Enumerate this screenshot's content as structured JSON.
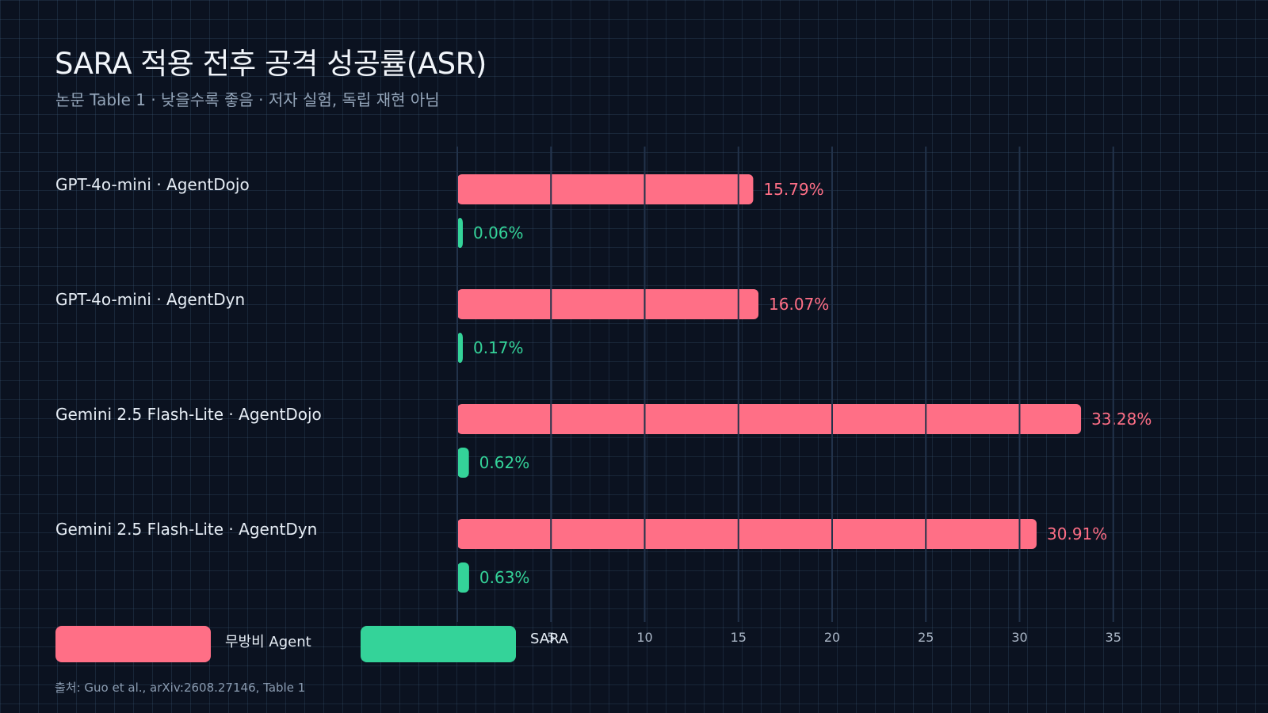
{
  "title": "SARA 적용 전후 공격 성공률(ASR)",
  "subtitle": "논문 Table 1 · 낮을수록 좋음 · 저자 실험, 독립 재현 아님",
  "source": "출처: Guo et al., arXiv:2608.27146, Table 1",
  "colors": {
    "background": "#0b1220",
    "baseline": "#ff6f86",
    "sara": "#34d399",
    "axis_line": "#22324a",
    "tick_text": "#aab6c6"
  },
  "legend": [
    {
      "label": "무방비 Agent",
      "color": "#ff6f86"
    },
    {
      "label": "SARA",
      "color": "#34d399"
    }
  ],
  "chart_data": {
    "type": "bar",
    "orientation": "horizontal",
    "title": "SARA 적용 전후 공격 성공률(ASR)",
    "categories": [
      "GPT-4o-mini · AgentDojo",
      "GPT-4o-mini · AgentDyn",
      "Gemini 2.5 Flash-Lite · AgentDojo",
      "Gemini 2.5 Flash-Lite · AgentDyn"
    ],
    "series": [
      {
        "name": "무방비 Agent",
        "values": [
          15.79,
          16.07,
          33.28,
          30.91
        ],
        "labels": [
          "15.79%",
          "16.07%",
          "33.28%",
          "30.91%"
        ]
      },
      {
        "name": "SARA",
        "values": [
          0.06,
          0.17,
          0.62,
          0.63
        ],
        "labels": [
          "0.06%",
          "0.17%",
          "0.62%",
          "0.63%"
        ]
      }
    ],
    "xlim": [
      0,
      35
    ],
    "xticks": [
      5,
      10,
      15,
      20,
      25,
      30,
      35
    ],
    "xtick_labels": [
      "5",
      "10",
      "15",
      "20",
      "25",
      "30",
      "35"
    ],
    "grid": true,
    "legend_position": "bottom-left"
  }
}
